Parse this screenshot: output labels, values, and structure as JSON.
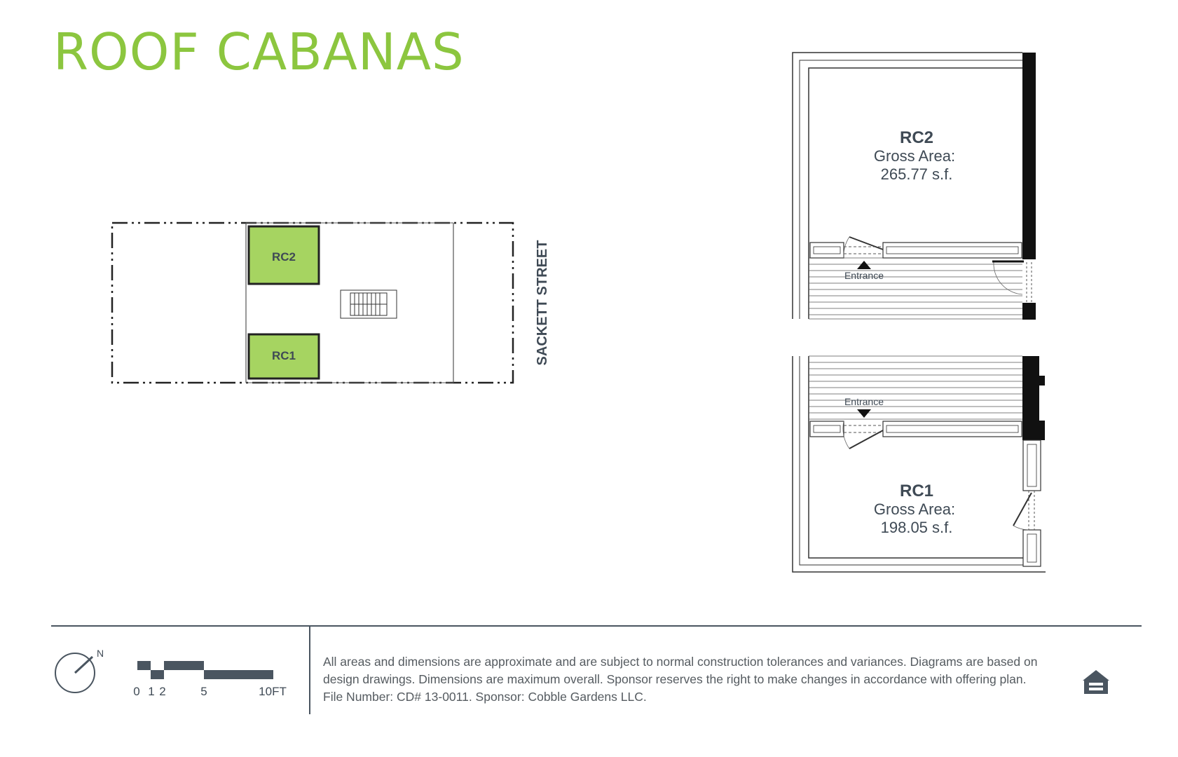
{
  "title": "ROOF CABANAS",
  "colors": {
    "title": "#8cc63f",
    "cabana_fill": "#a6d461",
    "text": "#3f4a55",
    "rule": "#4a5560"
  },
  "key_plan": {
    "units": [
      "RC2",
      "RC1"
    ],
    "street_label": "SACKETT STREET"
  },
  "units": [
    {
      "id": "RC2",
      "area_label": "Gross Area:",
      "area_value": "265.77 s.f.",
      "entrance_label": "Entrance"
    },
    {
      "id": "RC1",
      "area_label": "Gross Area:",
      "area_value": "198.05 s.f.",
      "entrance_label": "Entrance"
    }
  ],
  "compass": {
    "north_label": "N",
    "icon": "north-arrow-icon"
  },
  "scale_bar": {
    "ticks": [
      "0",
      "1",
      "2",
      "5",
      "10FT"
    ]
  },
  "disclaimer": "All areas and dimensions are approximate and are subject to normal construction tolerances and variances. Diagrams are based on design drawings. Dimensions are maximum overall. Sponsor reserves the right to make changes in accordance with offering plan. File Number: CD# 13-0011. Sponsor: Cobble Gardens LLC.",
  "equal_housing_icon": "equal-housing-icon"
}
